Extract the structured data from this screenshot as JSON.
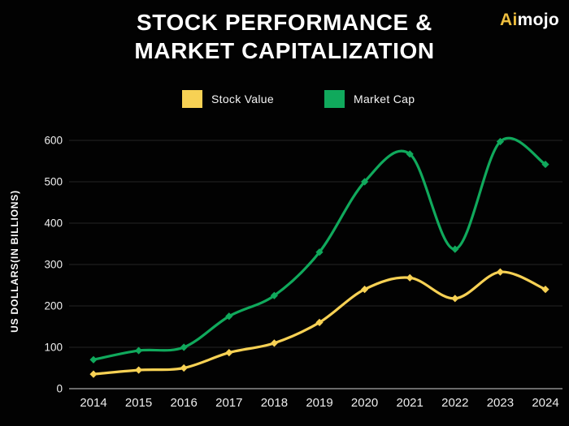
{
  "header": {
    "title_line1": "STOCK PERFORMANCE &",
    "title_line2": "MARKET CAPITALIZATION",
    "brand_prefix": "Ai",
    "brand_suffix": "mojo"
  },
  "chart_data": {
    "type": "line",
    "title": "STOCK PERFORMANCE & MARKET CAPITALIZATION",
    "x": [
      "2014",
      "2015",
      "2016",
      "2017",
      "2018",
      "2019",
      "2020",
      "2021",
      "2022",
      "2023",
      "2024"
    ],
    "series": [
      {
        "name": "Stock Value",
        "color": "#F7D154",
        "values": [
          35,
          45,
          50,
          87,
          110,
          160,
          240,
          268,
          218,
          282,
          240
        ]
      },
      {
        "name": "Market Cap",
        "color": "#10A95C",
        "values": [
          70,
          92,
          100,
          175,
          225,
          330,
          500,
          567,
          337,
          597,
          542
        ]
      }
    ],
    "xlabel": "",
    "ylabel": "US DOLLARS(IN BILLIONS)",
    "ylim": [
      0,
      600
    ],
    "ytick_step": 100,
    "yticks": [
      0,
      100,
      200,
      300,
      400,
      500,
      600
    ],
    "grid": true,
    "legend_position": "top-center"
  },
  "colors": {
    "background": "#020202",
    "title_text": "#FFFFFF",
    "tick_text": "#EDEDED",
    "grid_line": "#242424",
    "axis_line": "#A8A8A8",
    "brand_yellow": "#EFBF3F",
    "brand_white": "#FFFFFF"
  }
}
